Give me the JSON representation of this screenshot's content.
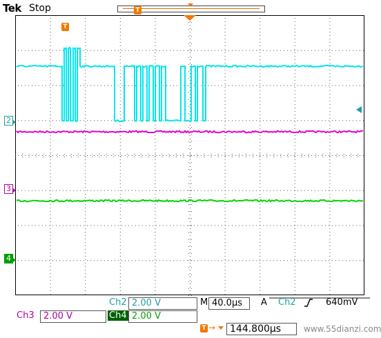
{
  "header": {
    "brand": "Tek",
    "run_state": "Stop"
  },
  "trigger_marker_label": "T",
  "channel_markers": {
    "ch2": "2",
    "ch3": "3",
    "ch4": "4"
  },
  "readouts": {
    "ch2_label": "Ch2",
    "ch2_scale": "2.00 V",
    "ch3_label": "Ch3",
    "ch3_scale": "2.00 V",
    "ch4_label": "Ch4",
    "ch4_scale": "2.00 V",
    "timebase_prefix": "M",
    "timebase": "40.0µs",
    "trigger_mode": "A",
    "trigger_source": "Ch2",
    "trigger_slope_icon": "rising-edge-icon",
    "trigger_level": "640mV",
    "trigger_position": "144.800µs"
  },
  "watermark": "www.55dianzi.com",
  "colors": {
    "ch2": "#00e5ee",
    "ch3": "#e000d0",
    "ch4": "#00d400",
    "trigger": "#f07800"
  }
}
